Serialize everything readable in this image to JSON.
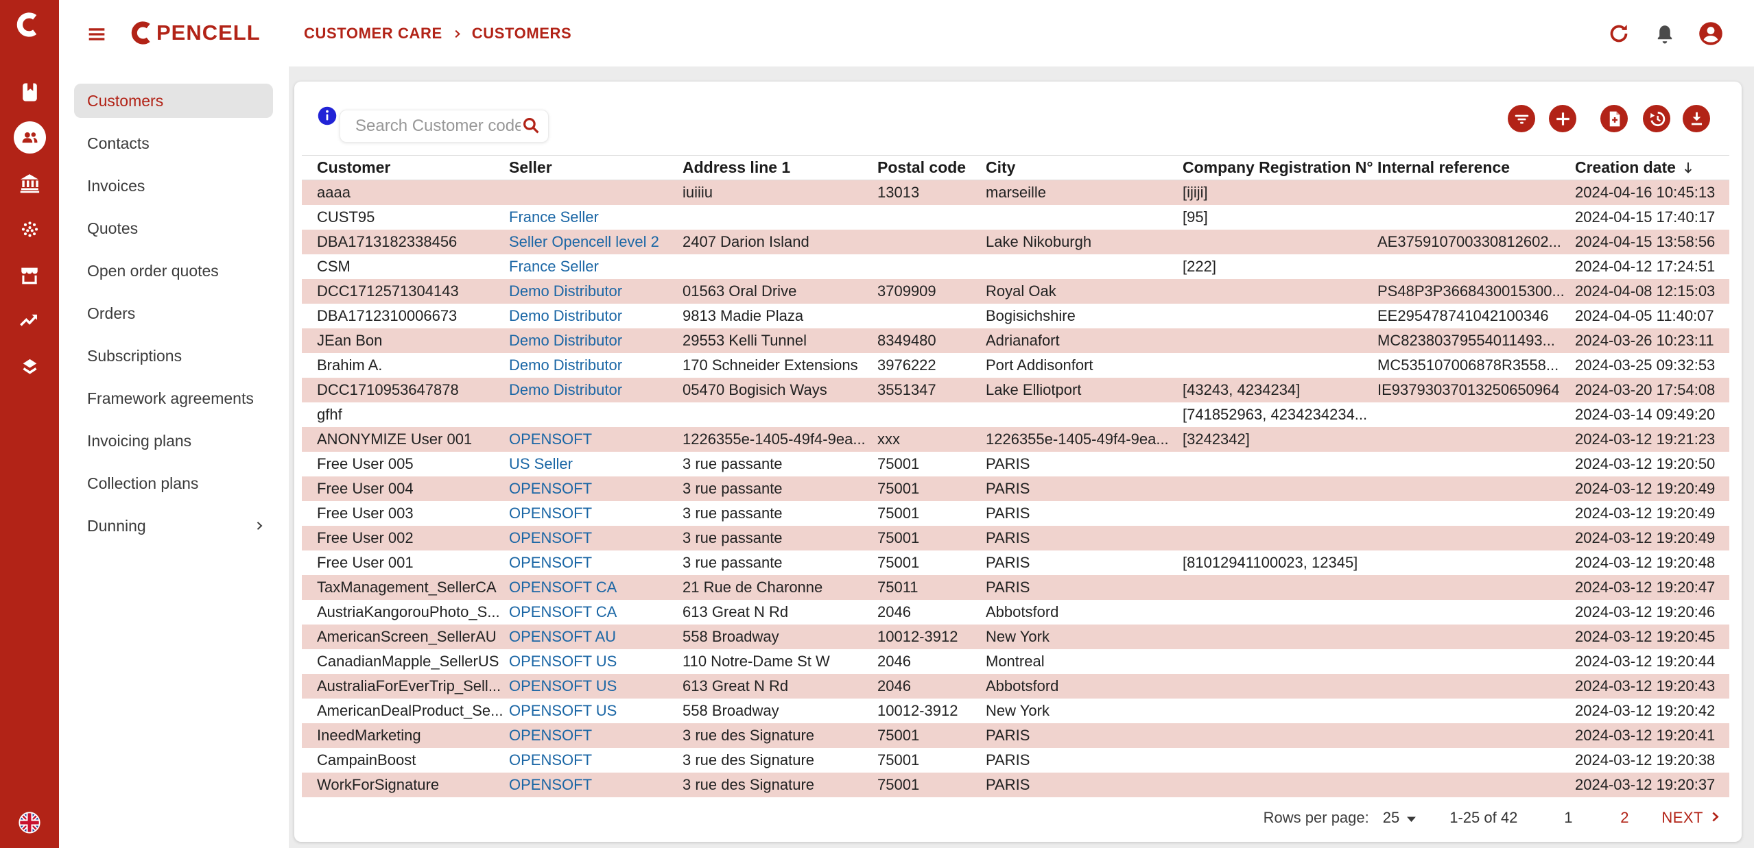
{
  "brand": {
    "name": "OPENCELL"
  },
  "breadcrumb": {
    "items": [
      "CUSTOMER CARE",
      "CUSTOMERS"
    ]
  },
  "topbar": {
    "buttons": [
      {
        "name": "refresh-button",
        "icon": "refresh"
      },
      {
        "name": "notifications-button",
        "icon": "bell"
      },
      {
        "name": "account-button",
        "icon": "account"
      }
    ]
  },
  "rail": {
    "items": [
      {
        "name": "contact-book-icon",
        "icon": "book",
        "active": false
      },
      {
        "name": "customers-icon",
        "icon": "people",
        "active": true
      },
      {
        "name": "bank-icon",
        "icon": "bank",
        "active": false
      },
      {
        "name": "network-dots-icon",
        "icon": "dots",
        "active": false
      },
      {
        "name": "marketplace-icon",
        "icon": "store",
        "active": false
      },
      {
        "name": "trending-up-icon",
        "icon": "trending",
        "active": false
      },
      {
        "name": "layers-icon",
        "icon": "layers",
        "active": false
      }
    ],
    "language_icon": "uk-flag-icon"
  },
  "sidebar": {
    "items": [
      {
        "label": "Customers",
        "selected": true,
        "chevron": false
      },
      {
        "label": "Contacts",
        "selected": false,
        "chevron": false
      },
      {
        "label": "Invoices",
        "selected": false,
        "chevron": false
      },
      {
        "label": "Quotes",
        "selected": false,
        "chevron": false
      },
      {
        "label": "Open order quotes",
        "selected": false,
        "chevron": false
      },
      {
        "label": "Orders",
        "selected": false,
        "chevron": false
      },
      {
        "label": "Subscriptions",
        "selected": false,
        "chevron": false
      },
      {
        "label": "Framework agreements",
        "selected": false,
        "chevron": false
      },
      {
        "label": "Invoicing plans",
        "selected": false,
        "chevron": false
      },
      {
        "label": "Collection plans",
        "selected": false,
        "chevron": false
      },
      {
        "label": "Dunning",
        "selected": false,
        "chevron": true
      }
    ]
  },
  "search": {
    "placeholder": "Search Customer code"
  },
  "toolbar": {
    "buttons": [
      {
        "name": "filter-button",
        "icon": "filter"
      },
      {
        "name": "add-customer-button",
        "icon": "plus"
      },
      {
        "name": "import-file-button",
        "icon": "fileAdd"
      },
      {
        "name": "history-button",
        "icon": "history"
      },
      {
        "name": "export-button",
        "icon": "download"
      }
    ]
  },
  "table": {
    "columns": [
      {
        "label": "Customer",
        "key": "customer"
      },
      {
        "label": "Seller",
        "key": "seller"
      },
      {
        "label": "Address line 1",
        "key": "address"
      },
      {
        "label": "Postal code",
        "key": "postal"
      },
      {
        "label": "City",
        "key": "city"
      },
      {
        "label": "Company Registration N°",
        "key": "company_registration"
      },
      {
        "label": "Internal reference",
        "key": "internal_reference"
      },
      {
        "label": "Creation date",
        "key": "creation_date",
        "sorted": "desc"
      }
    ],
    "rows": [
      {
        "customer": "aaaa",
        "seller": "",
        "address": "iuiiiu",
        "postal": "13013",
        "city": "marseille",
        "company_registration": "[ijiji]",
        "internal_reference": "",
        "creation_date": "2024-04-16 10:45:13"
      },
      {
        "customer": "CUST95",
        "seller": "France Seller",
        "address": "",
        "postal": "",
        "city": "",
        "company_registration": "[95]",
        "internal_reference": "",
        "creation_date": "2024-04-15 17:40:17"
      },
      {
        "customer": "DBA1713182338456",
        "seller": "Seller Opencell level 2",
        "address": "2407 Darion Island",
        "postal": "",
        "city": "Lake Nikoburgh",
        "company_registration": "",
        "internal_reference": "AE375910700330812602...",
        "creation_date": "2024-04-15 13:58:56"
      },
      {
        "customer": "CSM",
        "seller": "France Seller",
        "address": "",
        "postal": "",
        "city": "",
        "company_registration": "[222]",
        "internal_reference": "",
        "creation_date": "2024-04-12 17:24:51"
      },
      {
        "customer": "DCC1712571304143",
        "seller": "Demo Distributor",
        "address": "01563 Oral Drive",
        "postal": "3709909",
        "city": "Royal Oak",
        "company_registration": "",
        "internal_reference": "PS48P3P3668430015300...",
        "creation_date": "2024-04-08 12:15:03"
      },
      {
        "customer": "DBA1712310006673",
        "seller": "Demo Distributor",
        "address": "9813 Madie Plaza",
        "postal": "",
        "city": "Bogisichshire",
        "company_registration": "",
        "internal_reference": "EE295478741042100346",
        "creation_date": "2024-04-05 11:40:07"
      },
      {
        "customer": "JEan Bon",
        "seller": "Demo Distributor",
        "address": "29553 Kelli Tunnel",
        "postal": "8349480",
        "city": "Adrianafort",
        "company_registration": "",
        "internal_reference": "MC82380379554011493...",
        "creation_date": "2024-03-26 10:23:11"
      },
      {
        "customer": "Brahim A.",
        "seller": "Demo Distributor",
        "address": "170 Schneider Extensions",
        "postal": "3976222",
        "city": "Port Addisonfort",
        "company_registration": "",
        "internal_reference": "MC535107006878R3558...",
        "creation_date": "2024-03-25 09:32:53"
      },
      {
        "customer": "DCC1710953647878",
        "seller": "Demo Distributor",
        "address": "05470 Bogisich Ways",
        "postal": "3551347",
        "city": "Lake Elliotport",
        "company_registration": "[43243, 4234234]",
        "internal_reference": "IE93793037013250650964",
        "creation_date": "2024-03-20 17:54:08"
      },
      {
        "customer": "gfhf",
        "seller": "",
        "address": "",
        "postal": "",
        "city": "",
        "company_registration": "[741852963, 4234234234...",
        "internal_reference": "",
        "creation_date": "2024-03-14 09:49:20"
      },
      {
        "customer": "ANONYMIZE User 001",
        "seller": "OPENSOFT",
        "address": "1226355e-1405-49f4-9ea...",
        "postal": "xxx",
        "city": "1226355e-1405-49f4-9ea...",
        "company_registration": "[3242342]",
        "internal_reference": "",
        "creation_date": "2024-03-12 19:21:23"
      },
      {
        "customer": "Free User 005",
        "seller": "US Seller",
        "address": "3 rue passante",
        "postal": "75001",
        "city": "PARIS",
        "company_registration": "",
        "internal_reference": "",
        "creation_date": "2024-03-12 19:20:50"
      },
      {
        "customer": "Free User 004",
        "seller": "OPENSOFT",
        "address": "3 rue passante",
        "postal": "75001",
        "city": "PARIS",
        "company_registration": "",
        "internal_reference": "",
        "creation_date": "2024-03-12 19:20:49"
      },
      {
        "customer": "Free User 003",
        "seller": "OPENSOFT",
        "address": "3 rue passante",
        "postal": "75001",
        "city": "PARIS",
        "company_registration": "",
        "internal_reference": "",
        "creation_date": "2024-03-12 19:20:49"
      },
      {
        "customer": "Free User 002",
        "seller": "OPENSOFT",
        "address": "3 rue passante",
        "postal": "75001",
        "city": "PARIS",
        "company_registration": "",
        "internal_reference": "",
        "creation_date": "2024-03-12 19:20:49"
      },
      {
        "customer": "Free User 001",
        "seller": "OPENSOFT",
        "address": "3 rue passante",
        "postal": "75001",
        "city": "PARIS",
        "company_registration": "[81012941100023, 12345]",
        "internal_reference": "",
        "creation_date": "2024-03-12 19:20:48"
      },
      {
        "customer": "TaxManagement_SellerCA",
        "seller": "OPENSOFT CA",
        "address": "21 Rue de Charonne",
        "postal": "75011",
        "city": "PARIS",
        "company_registration": "",
        "internal_reference": "",
        "creation_date": "2024-03-12 19:20:47"
      },
      {
        "customer": "AustriaKangorouPhoto_S...",
        "seller": "OPENSOFT CA",
        "address": "613 Great N Rd",
        "postal": "2046",
        "city": "Abbotsford",
        "company_registration": "",
        "internal_reference": "",
        "creation_date": "2024-03-12 19:20:46"
      },
      {
        "customer": "AmericanScreen_SellerAU",
        "seller": "OPENSOFT AU",
        "address": "558 Broadway",
        "postal": "10012-3912",
        "city": "New York",
        "company_registration": "",
        "internal_reference": "",
        "creation_date": "2024-03-12 19:20:45"
      },
      {
        "customer": "CanadianMapple_SellerUS",
        "seller": "OPENSOFT US",
        "address": "110 Notre-Dame St W",
        "postal": "2046",
        "city": "Montreal",
        "company_registration": "",
        "internal_reference": "",
        "creation_date": "2024-03-12 19:20:44"
      },
      {
        "customer": "AustraliaForEverTrip_Sell...",
        "seller": "OPENSOFT US",
        "address": "613 Great N Rd",
        "postal": "2046",
        "city": "Abbotsford",
        "company_registration": "",
        "internal_reference": "",
        "creation_date": "2024-03-12 19:20:43"
      },
      {
        "customer": "AmericanDealProduct_Se...",
        "seller": "OPENSOFT US",
        "address": "558 Broadway",
        "postal": "10012-3912",
        "city": "New York",
        "company_registration": "",
        "internal_reference": "",
        "creation_date": "2024-03-12 19:20:42"
      },
      {
        "customer": "IneedMarketing",
        "seller": "OPENSOFT",
        "address": "3 rue des Signature",
        "postal": "75001",
        "city": "PARIS",
        "company_registration": "",
        "internal_reference": "",
        "creation_date": "2024-03-12 19:20:41"
      },
      {
        "customer": "CampainBoost",
        "seller": "OPENSOFT",
        "address": "3 rue des Signature",
        "postal": "75001",
        "city": "PARIS",
        "company_registration": "",
        "internal_reference": "",
        "creation_date": "2024-03-12 19:20:38"
      },
      {
        "customer": "WorkForSignature",
        "seller": "OPENSOFT",
        "address": "3 rue des Signature",
        "postal": "75001",
        "city": "PARIS",
        "company_registration": "",
        "internal_reference": "",
        "creation_date": "2024-03-12 19:20:37"
      }
    ]
  },
  "pagination": {
    "rows_per_page_label": "Rows per page:",
    "rows_per_page": "25",
    "range_label": "1-25 of 42",
    "pages": [
      {
        "label": "1",
        "current": true
      },
      {
        "label": "2",
        "current": false
      }
    ],
    "next_label": "NEXT"
  },
  "colors": {
    "primary": "#b22317",
    "row_alt": "#f0d3ce",
    "link": "#1a66a5",
    "info": "#2123d6",
    "page_bg": "#ececec"
  }
}
